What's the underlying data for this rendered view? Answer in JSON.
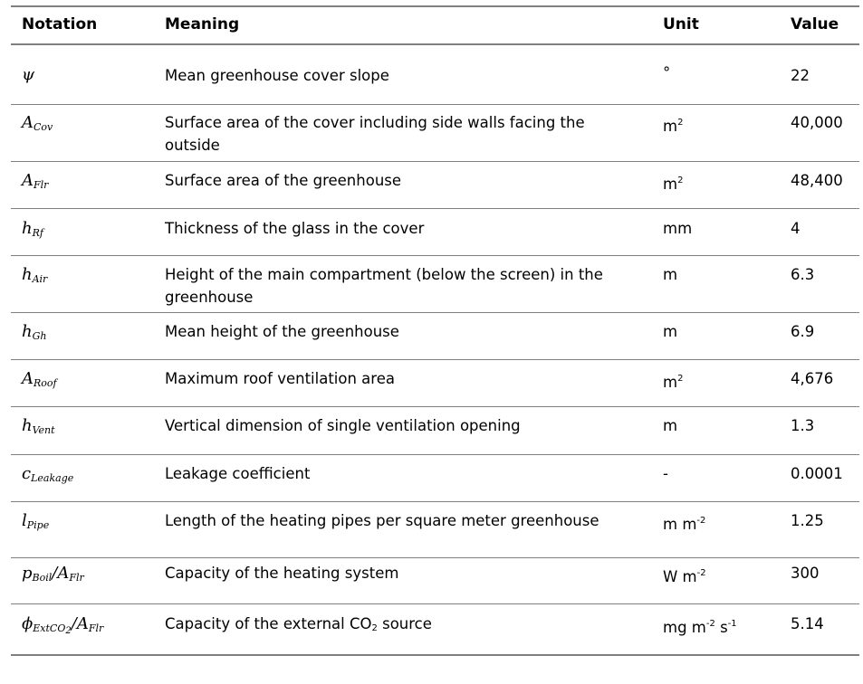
{
  "headers": {
    "notation": "Notation",
    "meaning": "Meaning",
    "unit": "Unit",
    "value": "Value"
  },
  "rows": [
    {
      "notation": "ψ",
      "meaning": "Mean greenhouse cover slope",
      "unit": "°",
      "value": "22"
    },
    {
      "notation_base": "A",
      "notation_sub": "Cov",
      "meaning": "Surface area of the cover including side walls facing the outside",
      "unit_base": "m",
      "unit_sup": "2",
      "value": "40,000"
    },
    {
      "notation_base": "A",
      "notation_sub": "Flr",
      "meaning": "Surface area of the greenhouse",
      "unit_base": "m",
      "unit_sup": "2",
      "value": "48,400"
    },
    {
      "notation_base": "h",
      "notation_sub": "Rf",
      "meaning": "Thickness of the glass in the cover",
      "unit": "mm",
      "value": "4"
    },
    {
      "notation_base": "h",
      "notation_sub": "Air",
      "meaning": "Height of the main compartment (below the screen) in the greenhouse",
      "unit": "m",
      "value": "6.3"
    },
    {
      "notation_base": "h",
      "notation_sub": "Gh",
      "meaning": "Mean height of the greenhouse",
      "unit": "m",
      "value": "6.9"
    },
    {
      "notation_base": "A",
      "notation_sub": "Roof",
      "meaning": "Maximum roof ventilation area",
      "unit_base": "m",
      "unit_sup": "2",
      "value": "4,676"
    },
    {
      "notation_base": "h",
      "notation_sub": "Vent",
      "meaning": "Vertical dimension of single ventilation opening",
      "unit": "m",
      "value": "1.3"
    },
    {
      "notation_base": "c",
      "notation_sub": "Leakage",
      "meaning": "Leakage coefficient",
      "unit": "-",
      "value": "0.0001"
    },
    {
      "notation_base": "l",
      "notation_sub": "Pipe",
      "meaning": "Length of the heating pipes per square meter greenhouse",
      "unit_base": "m m",
      "unit_sup": "-2",
      "value": "1.25"
    },
    {
      "notation_base": "p",
      "notation_sub": "Boil",
      "notation_slash": "/",
      "notation_base2": "A",
      "notation_sub2": "Flr",
      "meaning": "Capacity of the heating system",
      "unit_base": "W m",
      "unit_sup": "-2",
      "value": "300"
    },
    {
      "notation_base": "ϕ",
      "notation_sub": "ExtCO",
      "notation_subsub": "2",
      "notation_slash": "/",
      "notation_base2": "A",
      "notation_sub2": "Flr",
      "meaning_a": "Capacity of the external CO",
      "meaning_sub": "2",
      "meaning_b": " source",
      "unit_a": "mg m",
      "unit_sup1": "-2",
      "unit_b": " s",
      "unit_sup2": "-1",
      "value": "5.14"
    }
  ]
}
